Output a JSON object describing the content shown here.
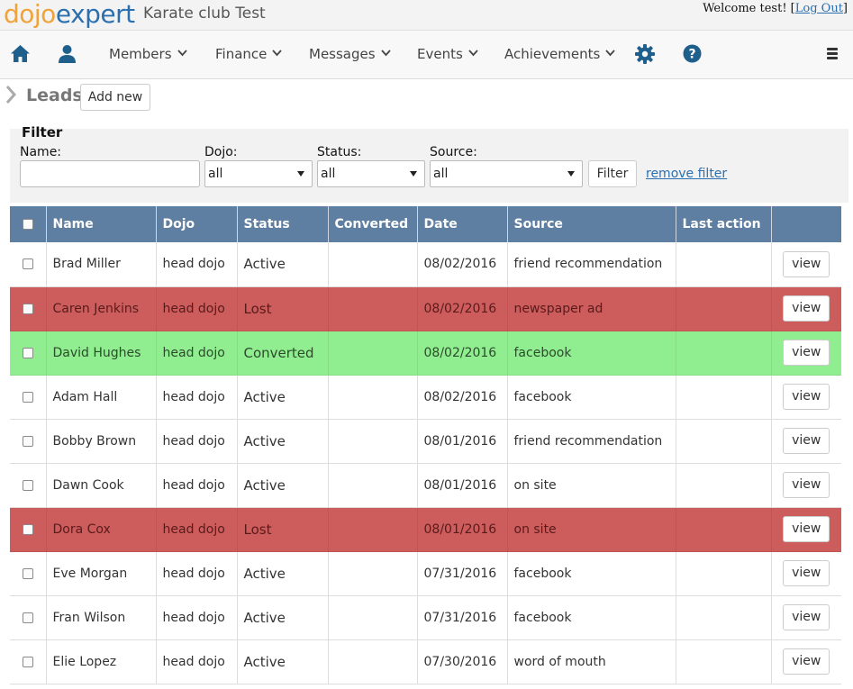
{
  "header": {
    "logo_part1": "dojo",
    "logo_part2": "expert",
    "club_name": "Karate club Test",
    "welcome_text": "Welcome test! [",
    "logout_label": "Log Out",
    "welcome_close": "]"
  },
  "nav": {
    "home_icon": "home-icon",
    "profile_icon": "user-icon",
    "items": [
      {
        "label": "Members"
      },
      {
        "label": "Finance"
      },
      {
        "label": "Messages"
      },
      {
        "label": "Events"
      },
      {
        "label": "Achievements"
      }
    ],
    "settings_icon": "gear-icon",
    "help_icon": "help-icon",
    "menu_icon": "hamburger-icon",
    "accent_color": "#1f5f8b"
  },
  "page": {
    "title": "Leads",
    "add_new_label": "Add new"
  },
  "filter": {
    "title": "Filter",
    "name_label": "Name:",
    "name_value": "",
    "dojo_label": "Dojo:",
    "dojo_value": "all",
    "status_label": "Status:",
    "status_value": "all",
    "source_label": "Source:",
    "source_value": "all",
    "filter_button": "Filter",
    "remove_filter_label": "remove filter"
  },
  "table": {
    "header_color": "#5e7fa1",
    "lost_color": "#cd5c5c",
    "converted_color": "#90ee90",
    "columns": [
      "",
      "Name",
      "Dojo",
      "Status",
      "Converted",
      "Date",
      "Source",
      "Last action",
      ""
    ],
    "view_label": "view",
    "rows": [
      {
        "name": "Brad Miller",
        "dojo": "head dojo",
        "status": "Active",
        "converted": "",
        "date": "08/02/2016",
        "source": "friend recommendation",
        "last_action": ""
      },
      {
        "name": "Caren Jenkins",
        "dojo": "head dojo",
        "status": "Lost",
        "converted": "",
        "date": "08/02/2016",
        "source": "newspaper ad",
        "last_action": ""
      },
      {
        "name": "David Hughes",
        "dojo": "head dojo",
        "status": "Converted",
        "converted": "",
        "date": "08/02/2016",
        "source": "facebook",
        "last_action": ""
      },
      {
        "name": "Adam Hall",
        "dojo": "head dojo",
        "status": "Active",
        "converted": "",
        "date": "08/02/2016",
        "source": "facebook",
        "last_action": ""
      },
      {
        "name": "Bobby Brown",
        "dojo": "head dojo",
        "status": "Active",
        "converted": "",
        "date": "08/01/2016",
        "source": "friend recommendation",
        "last_action": ""
      },
      {
        "name": "Dawn Cook",
        "dojo": "head dojo",
        "status": "Active",
        "converted": "",
        "date": "08/01/2016",
        "source": "on site",
        "last_action": ""
      },
      {
        "name": "Dora Cox",
        "dojo": "head dojo",
        "status": "Lost",
        "converted": "",
        "date": "08/01/2016",
        "source": "on site",
        "last_action": ""
      },
      {
        "name": "Eve Morgan",
        "dojo": "head dojo",
        "status": "Active",
        "converted": "",
        "date": "07/31/2016",
        "source": "facebook",
        "last_action": ""
      },
      {
        "name": "Fran Wilson",
        "dojo": "head dojo",
        "status": "Active",
        "converted": "",
        "date": "07/31/2016",
        "source": "facebook",
        "last_action": ""
      },
      {
        "name": "Elie Lopez",
        "dojo": "head dojo",
        "status": "Active",
        "converted": "",
        "date": "07/30/2016",
        "source": "word of mouth",
        "last_action": ""
      }
    ]
  }
}
